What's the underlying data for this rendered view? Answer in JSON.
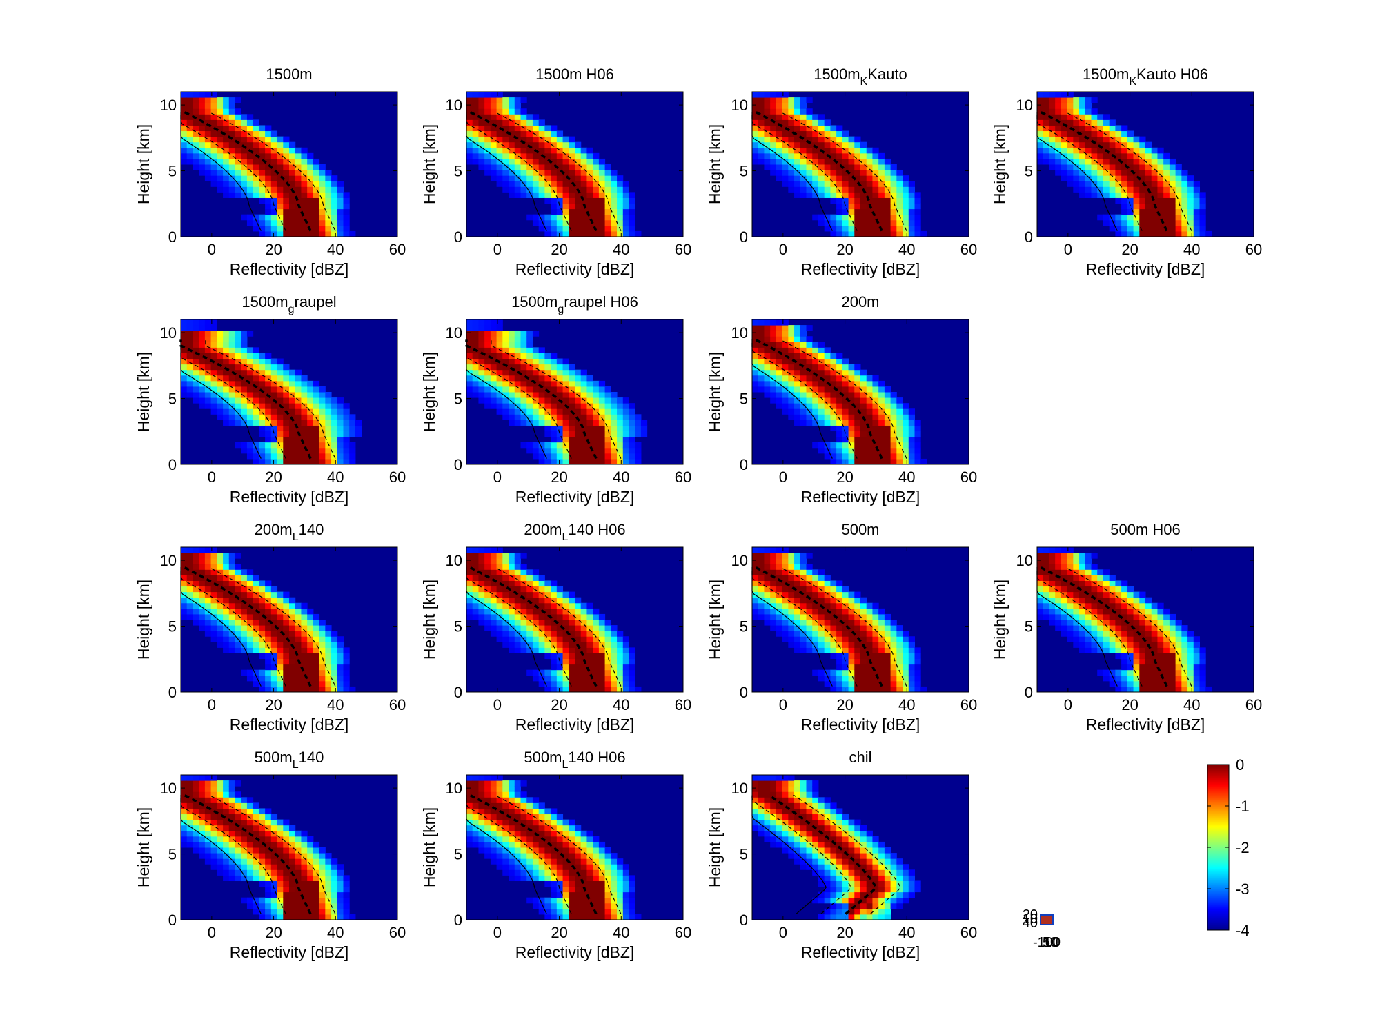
{
  "figure": {
    "chart_type": "heatmap",
    "colormap": "jet",
    "background": "#00008f",
    "layout": {
      "rows": 4,
      "cols": 4
    }
  },
  "chart_data": [
    {
      "type": "heatmap",
      "title": "1500m",
      "xlabel": "Reflectivity [dBZ]",
      "ylabel": "Height [km]",
      "xlim": [
        -10,
        60
      ],
      "ylim": [
        0,
        11
      ],
      "xticks": [
        0,
        20,
        40,
        60
      ],
      "yticks": [
        0,
        5,
        10
      ],
      "variant": "base",
      "grid": [
        0,
        0
      ]
    },
    {
      "type": "heatmap",
      "title": "1500m H06",
      "xlabel": "Reflectivity [dBZ]",
      "ylabel": "Height [km]",
      "xlim": [
        -10,
        60
      ],
      "ylim": [
        0,
        11
      ],
      "xticks": [
        0,
        20,
        40,
        60
      ],
      "yticks": [
        0,
        5,
        10
      ],
      "variant": "base",
      "grid": [
        0,
        1
      ]
    },
    {
      "type": "heatmap",
      "title_main": "1500m",
      "title_sub": "K",
      "title_rest": "Kauto",
      "xlabel": "Reflectivity [dBZ]",
      "ylabel": "Height [km]",
      "xlim": [
        -10,
        60
      ],
      "ylim": [
        0,
        11
      ],
      "xticks": [
        0,
        20,
        40,
        60
      ],
      "yticks": [
        0,
        5,
        10
      ],
      "variant": "base",
      "grid": [
        0,
        2
      ]
    },
    {
      "type": "heatmap",
      "title_main": "1500m",
      "title_sub": "K",
      "title_rest": "Kauto H06",
      "xlabel": "Reflectivity [dBZ]",
      "ylabel": "Height [km]",
      "xlim": [
        -10,
        60
      ],
      "ylim": [
        0,
        11
      ],
      "xticks": [
        0,
        20,
        40,
        60
      ],
      "yticks": [
        0,
        5,
        10
      ],
      "variant": "base",
      "grid": [
        0,
        3
      ]
    },
    {
      "type": "heatmap",
      "title_main": "1500m",
      "title_sub": "g",
      "title_rest": "raupel",
      "xlabel": "Reflectivity [dBZ]",
      "ylabel": "Height [km]",
      "xlim": [
        -10,
        60
      ],
      "ylim": [
        0,
        11
      ],
      "xticks": [
        0,
        20,
        40,
        60
      ],
      "yticks": [
        0,
        5,
        10
      ],
      "variant": "graupel",
      "grid": [
        1,
        0
      ]
    },
    {
      "type": "heatmap",
      "title_main": "1500m",
      "title_sub": "g",
      "title_rest": "raupel H06",
      "xlabel": "Reflectivity [dBZ]",
      "ylabel": "Height [km]",
      "xlim": [
        -10,
        60
      ],
      "ylim": [
        0,
        11
      ],
      "xticks": [
        0,
        20,
        40,
        60
      ],
      "yticks": [
        0,
        5,
        10
      ],
      "variant": "graupel",
      "grid": [
        1,
        1
      ]
    },
    {
      "type": "heatmap",
      "title": "200m",
      "xlabel": "Reflectivity [dBZ]",
      "ylabel": "Height [km]",
      "xlim": [
        -10,
        60
      ],
      "ylim": [
        0,
        11
      ],
      "xticks": [
        0,
        20,
        40,
        60
      ],
      "yticks": [
        0,
        5,
        10
      ],
      "variant": "fine",
      "grid": [
        1,
        2
      ]
    },
    {
      "type": "heatmap",
      "title_main": "200m",
      "title_sub": "L",
      "title_rest": "140",
      "xlabel": "Reflectivity [dBZ]",
      "ylabel": "Height [km]",
      "xlim": [
        -10,
        60
      ],
      "ylim": [
        0,
        11
      ],
      "xticks": [
        0,
        20,
        40,
        60
      ],
      "yticks": [
        0,
        5,
        10
      ],
      "variant": "base",
      "grid": [
        2,
        0
      ]
    },
    {
      "type": "heatmap",
      "title_main": "200m",
      "title_sub": "L",
      "title_rest": "140 H06",
      "xlabel": "Reflectivity [dBZ]",
      "ylabel": "Height [km]",
      "xlim": [
        -10,
        60
      ],
      "ylim": [
        0,
        11
      ],
      "xticks": [
        0,
        20,
        40,
        60
      ],
      "yticks": [
        0,
        5,
        10
      ],
      "variant": "base",
      "grid": [
        2,
        1
      ]
    },
    {
      "type": "heatmap",
      "title": "500m",
      "xlabel": "Reflectivity [dBZ]",
      "ylabel": "Height [km]",
      "xlim": [
        -10,
        60
      ],
      "ylim": [
        0,
        11
      ],
      "xticks": [
        0,
        20,
        40,
        60
      ],
      "yticks": [
        0,
        5,
        10
      ],
      "variant": "base",
      "grid": [
        2,
        2
      ]
    },
    {
      "type": "heatmap",
      "title": "500m H06",
      "xlabel": "Reflectivity [dBZ]",
      "ylabel": "Height [km]",
      "xlim": [
        -10,
        60
      ],
      "ylim": [
        0,
        11
      ],
      "xticks": [
        0,
        20,
        40,
        60
      ],
      "yticks": [
        0,
        5,
        10
      ],
      "variant": "base",
      "grid": [
        2,
        3
      ]
    },
    {
      "type": "heatmap",
      "title_main": "500m",
      "title_sub": "L",
      "title_rest": "140",
      "xlabel": "Reflectivity [dBZ]",
      "ylabel": "Height [km]",
      "xlim": [
        -10,
        60
      ],
      "ylim": [
        0,
        11
      ],
      "xticks": [
        0,
        20,
        40,
        60
      ],
      "yticks": [
        0,
        5,
        10
      ],
      "variant": "base",
      "grid": [
        3,
        0
      ]
    },
    {
      "type": "heatmap",
      "title_main": "500m",
      "title_sub": "L",
      "title_rest": "140 H06",
      "xlabel": "Reflectivity [dBZ]",
      "ylabel": "Height [km]",
      "xlim": [
        -10,
        60
      ],
      "ylim": [
        0,
        11
      ],
      "xticks": [
        0,
        20,
        40,
        60
      ],
      "yticks": [
        0,
        5,
        10
      ],
      "variant": "base",
      "grid": [
        3,
        1
      ]
    },
    {
      "type": "heatmap",
      "title": "chil",
      "xlabel": "Reflectivity [dBZ]",
      "ylabel": "Height [km]",
      "xlim": [
        -10,
        60
      ],
      "ylim": [
        0,
        11
      ],
      "xticks": [
        0,
        20,
        40,
        60
      ],
      "yticks": [
        0,
        5,
        10
      ],
      "variant": "chil",
      "grid": [
        3,
        2
      ]
    }
  ],
  "colorbar": {
    "range": [
      -4,
      0
    ],
    "ticks": [
      0,
      -1,
      -2,
      -3,
      -4
    ],
    "tick_labels": [
      "0",
      "-1",
      "-2",
      "-3",
      "-4"
    ]
  },
  "mini_axes": {
    "y_labels": [
      "10",
      "40",
      "20"
    ],
    "x_labels": [
      "-100",
      "50",
      "10"
    ]
  }
}
